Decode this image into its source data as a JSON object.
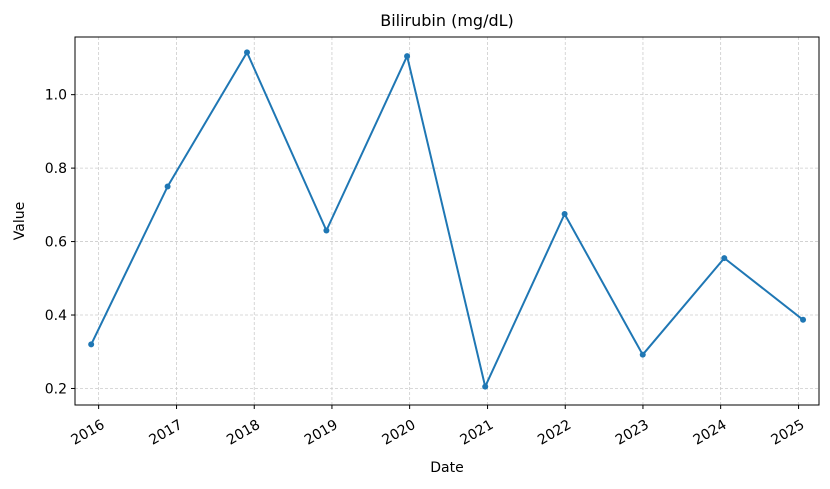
{
  "chart_data": {
    "type": "line",
    "title": "Bilirubin (mg/dL)",
    "xlabel": "Date",
    "ylabel": "Value",
    "x": [
      "2015-11-27",
      "2016-11-20",
      "2017-11-28",
      "2018-12-06",
      "2019-12-20",
      "2020-12-21",
      "2021-12-29",
      "2022-12-31",
      "2024-01-18",
      "2025-01-22"
    ],
    "values": [
      0.32,
      0.75,
      1.115,
      0.63,
      1.105,
      0.205,
      0.675,
      0.292,
      0.555,
      0.387
    ],
    "xticks": [
      "2016",
      "2017",
      "2018",
      "2019",
      "2020",
      "2021",
      "2022",
      "2023",
      "2024",
      "2025"
    ],
    "yticks": [
      0.2,
      0.4,
      0.6,
      0.8,
      1.0
    ],
    "ytick_labels": [
      "0.2",
      "0.4",
      "0.6",
      "0.8",
      "1.0"
    ],
    "ylim": [
      0.155,
      1.157
    ],
    "xlim": [
      "2015-09-12",
      "2025-04-07"
    ],
    "grid": true,
    "color": "#1f77b4"
  }
}
